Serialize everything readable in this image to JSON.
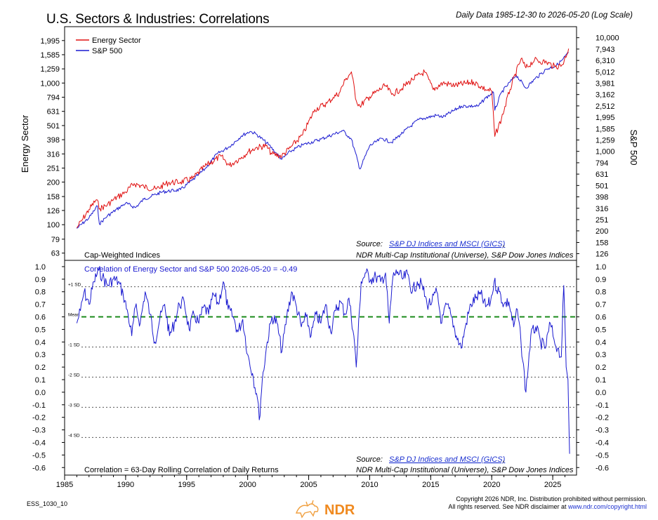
{
  "header": {
    "title": "U.S. Sectors & Industries: Correlations",
    "subtitle": "Daily Data 1985-12-30 to 2026-05-20 (Log Scale)"
  },
  "footer": {
    "chart_id": "ESS_1030_10",
    "copyright_line1": "Copyright 2026 NDR, Inc. Distribution prohibited without permission.",
    "copyright_line2_prefix": "All rights reserved. See NDR disclaimer at ",
    "copyright_link": "www.ndr.com/copyright.html",
    "logo_text": "NDR"
  },
  "colors": {
    "energy": "#e01010",
    "sp500": "#1a1ad0",
    "mean_line": "#1a8a1a",
    "source_link": "#1a2fd0"
  },
  "chart_data": [
    {
      "type": "line",
      "scale": "log",
      "x_ticks": [
        "1985",
        "1990",
        "1995",
        "2000",
        "2005",
        "2010",
        "2015",
        "2020",
        "2025"
      ],
      "ylabel_left": "Energy Sector",
      "ylabel_right": "S&P 500",
      "yticks_left": [
        "63",
        "79",
        "100",
        "126",
        "158",
        "200",
        "251",
        "316",
        "398",
        "501",
        "631",
        "794",
        "1,000",
        "1,259",
        "1,585",
        "1,995"
      ],
      "yticks_left_values": [
        63,
        79,
        100,
        126,
        158,
        200,
        251,
        316,
        398,
        501,
        631,
        794,
        1000,
        1259,
        1585,
        1995
      ],
      "yticks_right": [
        "126",
        "158",
        "200",
        "251",
        "316",
        "398",
        "501",
        "631",
        "794",
        "1,000",
        "1,259",
        "1,585",
        "1,995",
        "2,512",
        "3,162",
        "3,981",
        "5,012",
        "6,310",
        "7,943",
        "10,000"
      ],
      "yticks_right_values": [
        126,
        158,
        200,
        251,
        316,
        398,
        501,
        631,
        794,
        1000,
        1259,
        1585,
        1995,
        2512,
        3162,
        3981,
        5012,
        6310,
        7943,
        10000
      ],
      "ylim_left": [
        56,
        2500
      ],
      "ylim_right": [
        110,
        12500
      ],
      "legend": [
        "Energy Sector",
        "S&P 500"
      ],
      "legend_position": "top-left",
      "bottom_left_note": "Cap-Weighted Indices",
      "source_label": "Source:",
      "source_link": "S&P DJ Indices and MSCI (GICS)",
      "source_comma": ",",
      "source_line2": "NDR Multi-Cap Institutional (Universe), S&P Dow Jones Indices",
      "series": [
        {
          "name": "Energy Sector",
          "axis": "left",
          "x": [
            1986.0,
            1986.5,
            1987.0,
            1987.6,
            1987.9,
            1988.5,
            1989.0,
            1990.0,
            1990.7,
            1991.5,
            1992.5,
            1993.5,
            1994.5,
            1995.5,
            1996.5,
            1997.8,
            1998.5,
            1999.0,
            1999.5,
            2000.0,
            2000.7,
            2001.5,
            2002.0,
            2002.8,
            2003.5,
            2004.5,
            2005.5,
            2006.5,
            2007.0,
            2007.5,
            2008.0,
            2008.5,
            2008.9,
            2009.2,
            2010.0,
            2011.3,
            2011.8,
            2012.5,
            2013.5,
            2014.5,
            2015.2,
            2016.0,
            2017.0,
            2018.5,
            2019.5,
            2020.0,
            2020.25,
            2020.8,
            2021.5,
            2022.4,
            2022.8,
            2023.5,
            2024.5,
            2025.2,
            2025.8,
            2026.3
          ],
          "y": [
            95,
            110,
            128,
            150,
            130,
            138,
            150,
            170,
            195,
            185,
            178,
            198,
            200,
            212,
            258,
            305,
            262,
            280,
            300,
            325,
            350,
            360,
            315,
            305,
            350,
            430,
            650,
            720,
            790,
            850,
            1050,
            1200,
            750,
            690,
            800,
            960,
            830,
            900,
            1060,
            1200,
            900,
            1000,
            960,
            1020,
            900,
            880,
            420,
            560,
            900,
            1480,
            1280,
            1450,
            1400,
            1300,
            1350,
            1750
          ]
        },
        {
          "name": "S&P 500",
          "axis": "right",
          "x": [
            1986.0,
            1987.0,
            1987.7,
            1987.85,
            1988.5,
            1990.0,
            1990.8,
            1991.5,
            1993.0,
            1994.5,
            1995.5,
            1996.5,
            1997.5,
            1998.5,
            1999.5,
            2000.2,
            2000.7,
            2001.7,
            2002.8,
            2003.5,
            2004.5,
            2006.0,
            2007.8,
            2008.5,
            2009.2,
            2010.0,
            2011.0,
            2011.8,
            2012.5,
            2014.0,
            2015.5,
            2016.0,
            2017.5,
            2018.9,
            2019.5,
            2020.15,
            2020.25,
            2020.8,
            2022.0,
            2022.8,
            2023.5,
            2024.5,
            2025.3,
            2025.8,
            2026.3
          ],
          "y": [
            210,
            260,
            330,
            230,
            270,
            350,
            320,
            380,
            440,
            460,
            560,
            700,
            950,
            1100,
            1370,
            1500,
            1420,
            1150,
            850,
            1000,
            1140,
            1280,
            1520,
            1280,
            700,
            1120,
            1300,
            1200,
            1400,
            1900,
            2080,
            2000,
            2500,
            2500,
            2950,
            3300,
            2300,
            3300,
            4700,
            3600,
            4300,
            5300,
            5700,
            6400,
            7400
          ]
        }
      ]
    },
    {
      "type": "line",
      "title": "Correlation of Energy Sector and S&P 500 2026-05-20 = -0.49",
      "x_ticks": [
        "1985",
        "1990",
        "1995",
        "2000",
        "2005",
        "2010",
        "2015",
        "2020",
        "2025"
      ],
      "yticks": [
        "1.0",
        "0.9",
        "0.8",
        "0.7",
        "0.6",
        "0.5",
        "0.4",
        "0.3",
        "0.2",
        "0.1",
        "0.0",
        "-0.1",
        "-0.2",
        "-0.3",
        "-0.4",
        "-0.5",
        "-0.6"
      ],
      "yticks_values": [
        1.0,
        0.9,
        0.8,
        0.7,
        0.6,
        0.5,
        0.4,
        0.3,
        0.2,
        0.1,
        0.0,
        -0.1,
        -0.2,
        -0.3,
        -0.4,
        -0.5,
        -0.6
      ],
      "ylim": [
        -0.66,
        1.05
      ],
      "reference_lines": [
        {
          "label": "+1 SD",
          "value": 0.84
        },
        {
          "label": "Mean",
          "value": 0.6
        },
        {
          "label": "-1 SD",
          "value": 0.36
        },
        {
          "label": "-2 SD",
          "value": 0.12
        },
        {
          "label": "-3 SD",
          "value": -0.12
        },
        {
          "label": "-4 SD",
          "value": -0.36
        }
      ],
      "bottom_left_note": "Correlation = 63-Day Rolling Correlation of Daily Returns",
      "source_label": "Source:",
      "source_link": "S&P DJ Indices and MSCI (GICS)",
      "source_comma": ",",
      "source_line2": "NDR Multi-Cap Institutional (Universe), S&P Dow Jones Indices",
      "series": [
        {
          "name": "Correlation of Energy Sector and S&P 500",
          "x": [
            1986.0,
            1986.3,
            1986.6,
            1987.0,
            1987.4,
            1987.8,
            1988.1,
            1988.5,
            1989.0,
            1989.4,
            1989.8,
            1990.2,
            1990.5,
            1990.8,
            1991.2,
            1991.6,
            1992.0,
            1992.4,
            1992.8,
            1993.2,
            1993.6,
            1994.0,
            1994.4,
            1994.8,
            1995.2,
            1995.6,
            1996.0,
            1996.4,
            1996.8,
            1997.2,
            1997.6,
            1998.0,
            1998.4,
            1998.8,
            1999.2,
            1999.6,
            2000.0,
            2000.4,
            2000.8,
            2000.95,
            2001.2,
            2001.6,
            2002.0,
            2002.4,
            2002.8,
            2003.2,
            2003.6,
            2004.0,
            2004.4,
            2004.8,
            2005.2,
            2005.6,
            2006.0,
            2006.4,
            2006.8,
            2007.2,
            2007.6,
            2008.0,
            2008.3,
            2008.7,
            2008.9,
            2009.3,
            2009.7,
            2010.1,
            2010.5,
            2010.9,
            2011.3,
            2011.6,
            2011.9,
            2012.3,
            2012.7,
            2013.1,
            2013.5,
            2013.9,
            2014.3,
            2014.7,
            2015.1,
            2015.5,
            2015.9,
            2016.3,
            2016.7,
            2017.1,
            2017.5,
            2017.9,
            2018.3,
            2018.7,
            2019.1,
            2019.5,
            2019.9,
            2020.2,
            2020.6,
            2021.0,
            2021.4,
            2021.8,
            2022.1,
            2022.4,
            2022.8,
            2023.2,
            2023.6,
            2024.0,
            2024.4,
            2024.8,
            2025.1,
            2025.4,
            2025.7,
            2025.9,
            2026.1,
            2026.25,
            2026.38
          ],
          "y": [
            0.55,
            0.65,
            0.8,
            0.7,
            0.88,
            0.97,
            0.92,
            0.85,
            0.9,
            0.88,
            0.78,
            0.62,
            0.45,
            0.68,
            0.55,
            0.8,
            0.62,
            0.4,
            0.58,
            0.7,
            0.45,
            0.55,
            0.7,
            0.72,
            0.5,
            0.62,
            0.55,
            0.68,
            0.62,
            0.78,
            0.7,
            0.88,
            0.66,
            0.6,
            0.48,
            0.58,
            0.3,
            0.15,
            -0.05,
            -0.22,
            0.1,
            0.4,
            0.6,
            0.55,
            0.32,
            0.6,
            0.8,
            0.68,
            0.52,
            0.6,
            0.45,
            0.62,
            0.55,
            0.7,
            0.48,
            0.65,
            0.72,
            0.62,
            0.75,
            0.45,
            0.2,
            0.88,
            0.95,
            0.9,
            0.92,
            0.88,
            0.95,
            0.55,
            0.92,
            0.96,
            0.9,
            0.94,
            0.8,
            0.88,
            0.85,
            0.7,
            0.72,
            0.8,
            0.55,
            0.7,
            0.6,
            0.45,
            0.35,
            0.55,
            0.7,
            0.75,
            0.78,
            0.68,
            0.72,
            0.88,
            0.8,
            0.7,
            0.72,
            0.52,
            0.66,
            0.4,
            0.0,
            0.45,
            0.52,
            0.4,
            0.35,
            0.55,
            0.42,
            0.35,
            0.28,
            0.85,
            0.2,
            0.1,
            -0.49
          ]
        }
      ]
    }
  ]
}
